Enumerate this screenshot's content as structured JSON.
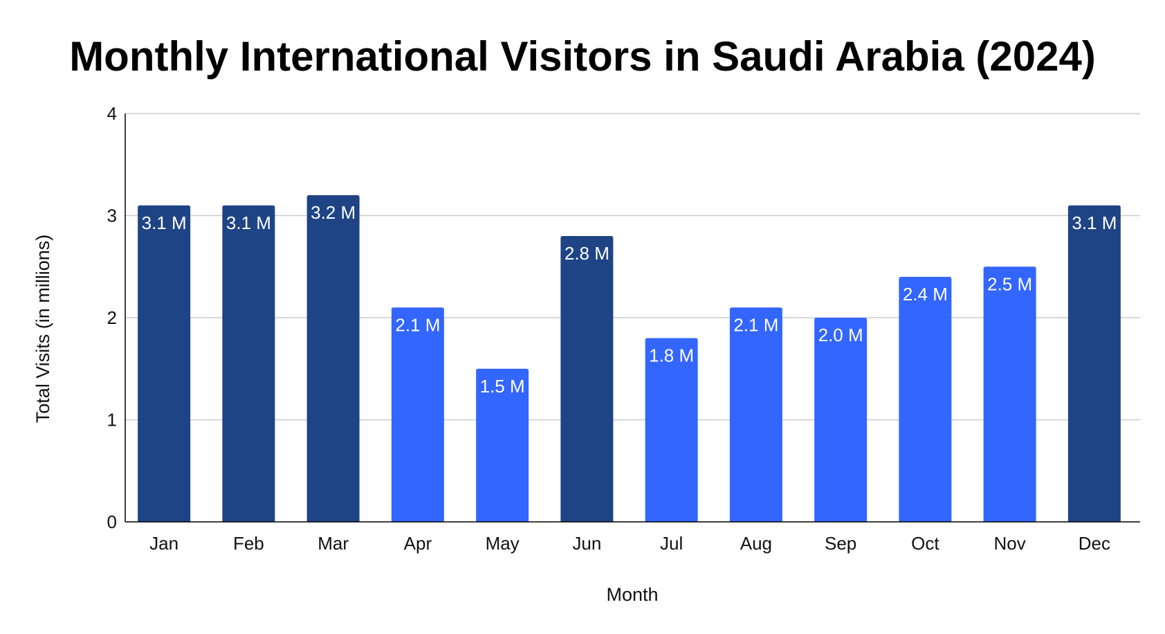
{
  "chart_data": {
    "type": "bar",
    "title": "Monthly International Visitors in Saudi Arabia (2024)",
    "xlabel": "Month",
    "ylabel": "Total Visits (in millions)",
    "categories": [
      "Jan",
      "Feb",
      "Mar",
      "Apr",
      "May",
      "Jun",
      "Jul",
      "Aug",
      "Sep",
      "Oct",
      "Nov",
      "Dec"
    ],
    "values": [
      3.1,
      3.1,
      3.2,
      2.1,
      1.5,
      2.8,
      1.8,
      2.1,
      2.0,
      2.4,
      2.5,
      3.1
    ],
    "data_labels": [
      "3.1 M",
      "3.1 M",
      "3.2 M",
      "2.1 M",
      "1.5 M",
      "2.8 M",
      "1.8 M",
      "2.1 M",
      "2.0 M",
      "2.4 M",
      "2.5 M",
      "3.1 M"
    ],
    "ylim": [
      0,
      4
    ],
    "yticks": [
      0,
      1,
      2,
      3,
      4
    ],
    "grid": true,
    "colors": {
      "high": "#1F4485",
      "low": "#3366FF",
      "grid": "#CCCCCC",
      "axis": "#000000"
    },
    "highlight_threshold": 2.8
  }
}
